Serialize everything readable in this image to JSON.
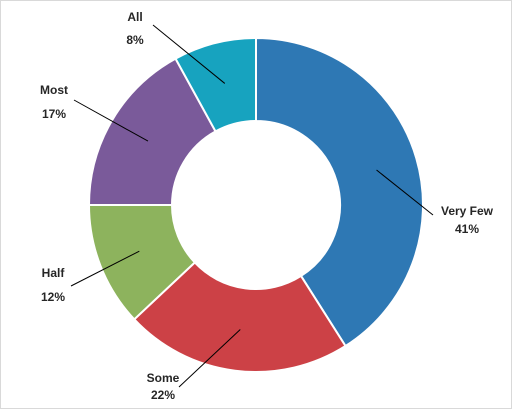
{
  "chart_data": {
    "type": "pie",
    "variant": "donut",
    "legend": "none",
    "categories": [
      "Very Few",
      "Some",
      "Half",
      "Most",
      "All"
    ],
    "values": [
      41,
      22,
      12,
      17,
      8
    ],
    "value_labels": [
      "41%",
      "22%",
      "12%",
      "17%",
      "8%"
    ],
    "colors": [
      "#2e78b4",
      "#cc4146",
      "#8db35d",
      "#7a5a9a",
      "#17a3bf"
    ],
    "start_angle": 0,
    "direction": "clockwise"
  }
}
